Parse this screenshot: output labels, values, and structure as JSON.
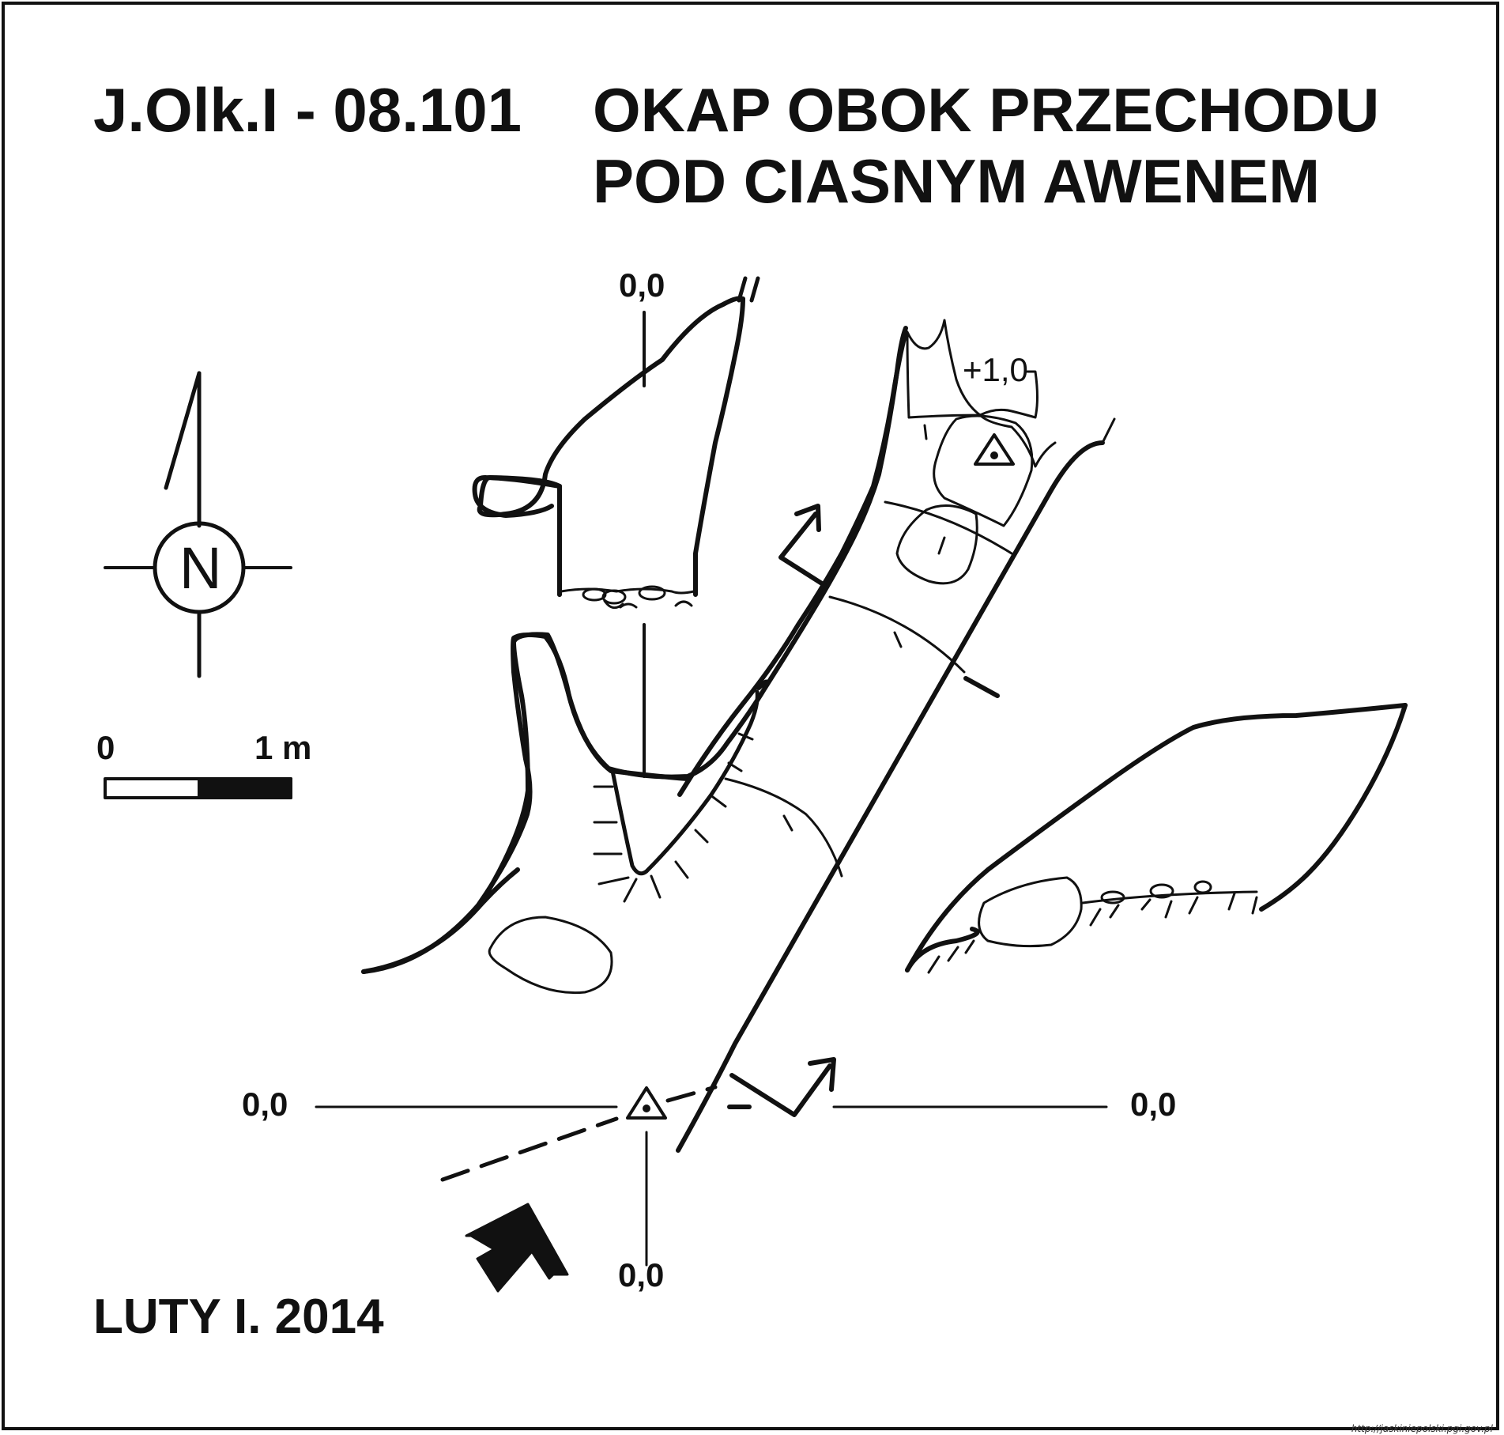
{
  "title": {
    "code": "J.Olk.I - 08.101",
    "line1": "OKAP OBOK PRZECHODU",
    "line2": "POD CIASNYM AWENEM"
  },
  "date": "LUTY I. 2014",
  "north": {
    "letter": "N",
    "icon": "north-arrow-icon"
  },
  "scale": {
    "start": "0",
    "end": "1 m"
  },
  "levels": {
    "top": "0,0",
    "upper_chamber": "+1,0",
    "left": "0,0",
    "right": "0,0",
    "bottom": "0,0"
  },
  "symbols": [
    "survey-station-icon",
    "entrance-arrow-icon",
    "section-arrow-icon"
  ],
  "source": "http://jaskiniepolski.pgi.gov.pl"
}
